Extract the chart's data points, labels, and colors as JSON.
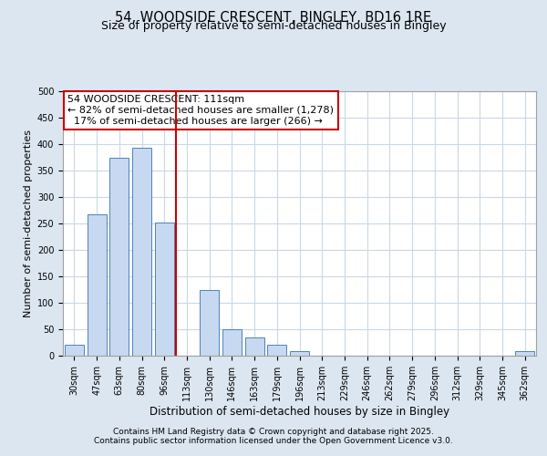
{
  "title_line1": "54, WOODSIDE CRESCENT, BINGLEY, BD16 1RE",
  "title_line2": "Size of property relative to semi-detached houses in Bingley",
  "xlabel": "Distribution of semi-detached houses by size in Bingley",
  "ylabel": "Number of semi-detached properties",
  "footnote_line1": "Contains HM Land Registry data © Crown copyright and database right 2025.",
  "footnote_line2": "Contains public sector information licensed under the Open Government Licence v3.0.",
  "annotation_line1": "54 WOODSIDE CRESCENT: 111sqm",
  "annotation_line2": "← 82% of semi-detached houses are smaller (1,278)",
  "annotation_line3": "17% of semi-detached houses are larger (266) →",
  "bar_colors": "#c6d9f0",
  "bar_edge_color": "#4f81bd",
  "vertical_line_color": "#cc0000",
  "annotation_box_edge_color": "#cc0000",
  "annotation_box_face_color": "#ffffff",
  "background_color": "#dce6f1",
  "plot_bg_color": "#ffffff",
  "grid_color": "#c8d8e8",
  "categories": [
    "30sqm",
    "47sqm",
    "63sqm",
    "80sqm",
    "96sqm",
    "113sqm",
    "130sqm",
    "146sqm",
    "163sqm",
    "179sqm",
    "196sqm",
    "213sqm",
    "229sqm",
    "246sqm",
    "262sqm",
    "279sqm",
    "296sqm",
    "312sqm",
    "329sqm",
    "345sqm",
    "362sqm"
  ],
  "values": [
    20,
    268,
    375,
    393,
    252,
    0,
    125,
    50,
    35,
    20,
    8,
    0,
    0,
    0,
    0,
    0,
    0,
    0,
    0,
    0,
    8
  ],
  "ylim": [
    0,
    500
  ],
  "yticks": [
    0,
    50,
    100,
    150,
    200,
    250,
    300,
    350,
    400,
    450,
    500
  ],
  "property_bin_index": 5,
  "title_fontsize": 10.5,
  "subtitle_fontsize": 9,
  "ylabel_fontsize": 8,
  "xlabel_fontsize": 8.5,
  "tick_fontsize": 7,
  "annotation_fontsize": 8,
  "footnote_fontsize": 6.5
}
